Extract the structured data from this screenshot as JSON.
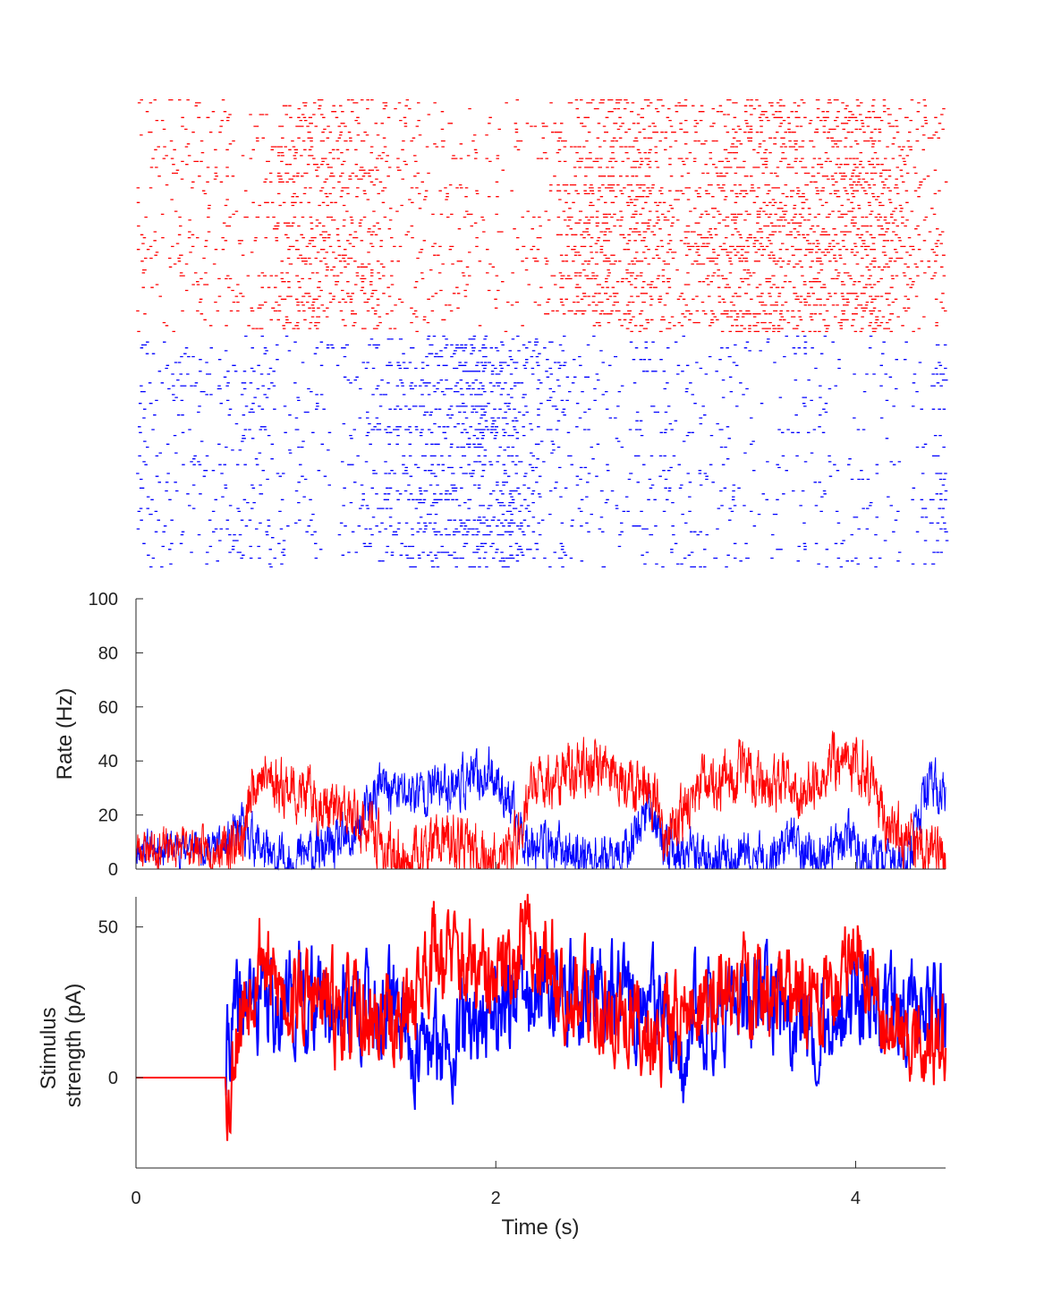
{
  "figure": {
    "x_axis_label": "Time (s)",
    "x_ticks": [
      "0",
      "2",
      "4"
    ]
  },
  "colors": {
    "population_1": "#ff0000",
    "population_2": "#0000ff",
    "axis": "#262626"
  },
  "chart_data": [
    {
      "type": "scatter",
      "subtype": "raster",
      "xlim": [
        0,
        4.5
      ],
      "axes_visible": false,
      "series": [
        {
          "color": "#ff0000",
          "rows": 80,
          "position": "top",
          "rate_profile_x": [
            0,
            0.5,
            0.6,
            0.66,
            0.8,
            1.1,
            1.3,
            1.4,
            1.5,
            1.7,
            1.9,
            2.0,
            2.1,
            2.2,
            2.5,
            2.7,
            2.85,
            2.95,
            3.1,
            3.4,
            3.6,
            3.7,
            3.9,
            4.05,
            4.2,
            4.35,
            4.5
          ],
          "rate_profile_y": [
            8,
            8,
            12,
            35,
            32,
            22,
            15,
            5,
            3,
            10,
            6,
            2,
            8,
            30,
            38,
            35,
            30,
            12,
            28,
            36,
            30,
            28,
            40,
            38,
            15,
            8,
            5
          ]
        },
        {
          "color": "#0000ff",
          "rows": 80,
          "position": "bottom",
          "rate_profile_x": [
            0,
            0.5,
            0.6,
            0.7,
            0.75,
            1.0,
            1.2,
            1.35,
            1.5,
            1.8,
            2.0,
            2.15,
            2.4,
            2.7,
            2.85,
            2.95,
            3.1,
            3.5,
            3.65,
            3.75,
            3.85,
            3.95,
            4.05,
            4.3,
            4.4,
            4.5
          ],
          "rate_profile_y": [
            8,
            8,
            15,
            8,
            2,
            6,
            10,
            30,
            28,
            32,
            35,
            12,
            6,
            3,
            25,
            6,
            4,
            3,
            12,
            4,
            2,
            14,
            3,
            4,
            30,
            28
          ]
        }
      ]
    },
    {
      "type": "line",
      "ylabel": "Rate (Hz)",
      "xlim": [
        0,
        4.5
      ],
      "ylim": [
        0,
        100
      ],
      "y_ticks": [
        0,
        20,
        40,
        60,
        80,
        100
      ],
      "series": [
        {
          "color": "#ff0000",
          "x": [
            0,
            0.5,
            0.6,
            0.66,
            0.8,
            1.1,
            1.3,
            1.4,
            1.5,
            1.7,
            1.9,
            2.0,
            2.1,
            2.2,
            2.5,
            2.7,
            2.85,
            2.95,
            3.1,
            3.4,
            3.6,
            3.7,
            3.9,
            4.05,
            4.2,
            4.35,
            4.5
          ],
          "y": [
            8,
            8,
            12,
            35,
            32,
            22,
            15,
            5,
            3,
            10,
            6,
            2,
            8,
            30,
            38,
            35,
            30,
            12,
            28,
            36,
            30,
            28,
            40,
            38,
            15,
            8,
            5
          ]
        },
        {
          "color": "#0000ff",
          "x": [
            0,
            0.5,
            0.6,
            0.7,
            0.75,
            1.0,
            1.2,
            1.35,
            1.5,
            1.8,
            2.0,
            2.15,
            2.4,
            2.7,
            2.85,
            2.95,
            3.1,
            3.5,
            3.65,
            3.75,
            3.85,
            3.95,
            4.05,
            4.3,
            4.4,
            4.5
          ],
          "y": [
            8,
            8,
            15,
            8,
            2,
            6,
            10,
            30,
            28,
            32,
            35,
            12,
            6,
            3,
            25,
            6,
            4,
            3,
            12,
            4,
            2,
            14,
            3,
            4,
            30,
            28
          ]
        }
      ]
    },
    {
      "type": "line",
      "ylabel_lines": [
        "Stimulus",
        "strength (pA)"
      ],
      "xlim": [
        0,
        4.5
      ],
      "ylim": [
        -30,
        60
      ],
      "y_ticks": [
        0,
        50
      ],
      "series": [
        {
          "color": "#0000ff",
          "x": [
            0,
            0.5,
            0.51,
            0.6,
            1.0,
            1.5,
            1.55,
            2.0,
            2.5,
            2.8,
            2.95,
            3.03,
            3.1,
            3.5,
            3.8,
            4.0,
            4.2,
            4.5
          ],
          "y": [
            0,
            0,
            12,
            25,
            26,
            22,
            5,
            25,
            28,
            24,
            20,
            -8,
            22,
            25,
            18,
            25,
            20,
            25
          ]
        },
        {
          "color": "#ff0000",
          "x": [
            0,
            0.5,
            0.52,
            0.55,
            0.7,
            0.75,
            1.0,
            1.3,
            1.5,
            1.65,
            2.0,
            2.15,
            2.5,
            2.85,
            3.0,
            3.4,
            3.6,
            3.9,
            4.0,
            4.2,
            4.5
          ],
          "y": [
            0,
            0,
            -8,
            15,
            45,
            30,
            25,
            18,
            20,
            45,
            28,
            48,
            25,
            15,
            20,
            30,
            25,
            28,
            50,
            15,
            10
          ]
        }
      ]
    }
  ]
}
